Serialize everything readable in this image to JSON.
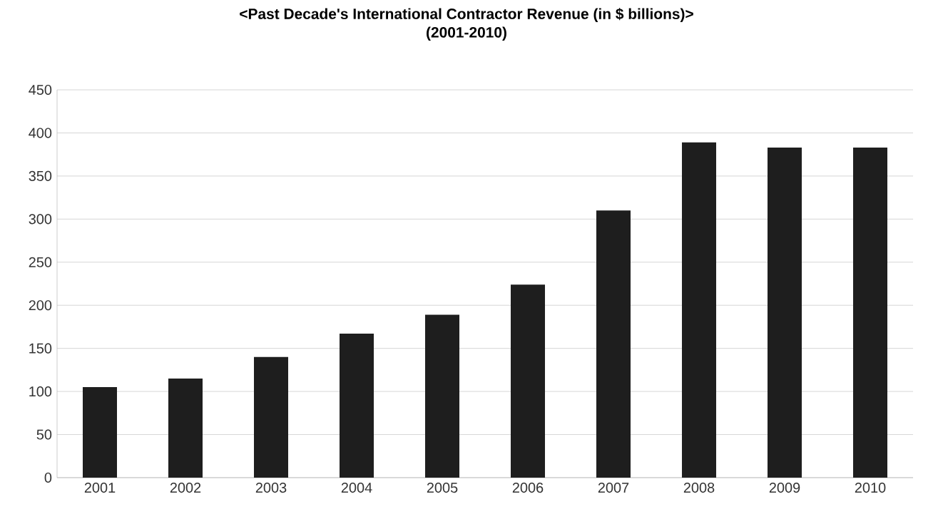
{
  "chart_data": {
    "type": "bar",
    "title": "<Past Decade's International Contractor Revenue (in $ billions)>",
    "subtitle": "(2001-2010)",
    "categories": [
      "2001",
      "2002",
      "2003",
      "2004",
      "2005",
      "2006",
      "2007",
      "2008",
      "2009",
      "2010"
    ],
    "values": [
      105,
      115,
      140,
      167,
      189,
      224,
      310,
      389,
      383,
      383
    ],
    "color": "#1e1e1e",
    "ylim": [
      0,
      450
    ],
    "yticks": [
      0,
      50,
      100,
      150,
      200,
      250,
      300,
      350,
      400,
      450
    ],
    "grid": "y"
  }
}
